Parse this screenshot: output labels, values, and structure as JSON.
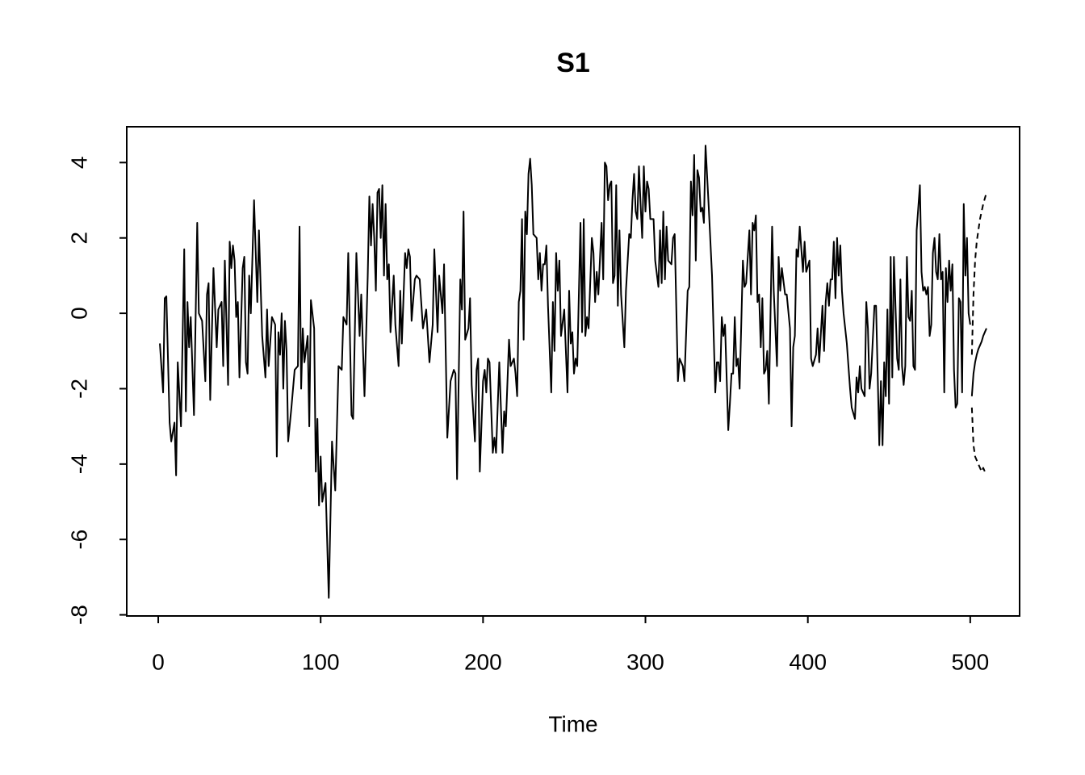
{
  "chart_data": {
    "type": "line",
    "title": "S1",
    "xlabel": "Time",
    "xlim": [
      -19.4,
      530.4
    ],
    "ylim": [
      -8.03,
      4.95
    ],
    "xticks": [
      0,
      100,
      200,
      300,
      400,
      500
    ],
    "yticks": [
      -8,
      -6,
      -4,
      -2,
      0,
      2,
      4
    ],
    "series": [
      {
        "color": "#000000",
        "linestyle": "solid",
        "x": [
          1,
          3,
          4,
          5,
          7,
          8,
          10,
          11,
          12,
          14,
          16,
          17,
          18,
          19,
          20,
          22,
          24,
          25,
          27,
          29,
          30,
          31,
          32,
          34,
          36,
          37,
          39,
          40,
          41,
          43,
          44,
          45,
          46,
          47,
          48,
          49,
          50,
          52,
          53,
          54,
          55,
          56,
          57,
          59,
          61,
          62,
          64,
          66,
          67,
          68,
          70,
          72,
          73,
          74,
          75,
          76,
          77,
          78,
          79,
          80,
          82,
          84,
          86,
          87,
          88,
          89,
          90,
          92,
          93,
          94,
          96,
          97,
          98,
          99,
          100,
          101,
          103,
          105,
          107,
          109,
          111,
          113,
          114,
          116,
          117,
          119,
          120,
          122,
          124,
          125,
          127,
          129,
          130,
          131,
          132,
          133,
          134,
          135,
          136,
          137,
          138,
          139,
          140,
          141,
          142,
          143,
          145,
          146,
          148,
          149,
          150,
          152,
          153,
          154,
          155,
          156,
          158,
          159,
          161,
          163,
          165,
          167,
          169,
          170,
          172,
          173,
          175,
          176,
          178,
          180,
          182,
          183,
          184,
          186,
          187,
          188,
          189,
          191,
          192,
          193,
          195,
          196,
          197,
          198,
          200,
          201,
          202,
          203,
          204,
          206,
          207,
          208,
          210,
          212,
          213,
          214,
          216,
          217,
          219,
          220,
          221,
          222,
          223,
          224,
          225,
          226,
          227,
          228,
          229,
          230,
          231,
          233,
          234,
          235,
          236,
          237,
          238,
          239,
          240,
          242,
          243,
          244,
          245,
          246,
          247,
          248,
          250,
          252,
          253,
          254,
          255,
          256,
          257,
          258,
          260,
          261,
          262,
          263,
          264,
          265,
          267,
          268,
          269,
          270,
          271,
          273,
          274,
          275,
          276,
          277,
          278,
          279,
          280,
          281,
          282,
          283,
          284,
          285,
          287,
          288,
          290,
          291,
          292,
          293,
          294,
          295,
          296,
          297,
          298,
          299,
          300,
          301,
          302,
          303,
          305,
          306,
          308,
          309,
          310,
          311,
          312,
          313,
          314,
          316,
          317,
          318,
          320,
          321,
          323,
          324,
          326,
          327,
          328,
          329,
          330,
          331,
          332,
          333,
          334,
          335,
          336,
          337,
          339,
          341,
          343,
          344,
          345,
          346,
          347,
          348,
          349,
          351,
          352,
          353,
          354,
          355,
          356,
          357,
          358,
          360,
          361,
          362,
          364,
          365,
          366,
          367,
          368,
          369,
          370,
          371,
          372,
          373,
          374,
          375,
          376,
          378,
          379,
          381,
          382,
          383,
          384,
          386,
          387,
          389,
          390,
          391,
          392,
          393,
          394,
          395,
          397,
          398,
          399,
          401,
          402,
          403,
          405,
          406,
          407,
          409,
          410,
          411,
          412,
          413,
          414,
          415,
          416,
          417,
          418,
          419,
          420,
          421,
          422,
          424,
          426,
          427,
          429,
          430,
          431,
          432,
          433,
          435,
          436,
          437,
          438,
          439,
          441,
          442,
          443,
          444,
          445,
          446,
          447,
          448,
          449,
          450,
          451,
          452,
          453,
          455,
          456,
          457,
          458,
          459,
          460,
          461,
          462,
          463,
          464,
          465,
          466,
          467,
          469,
          470,
          471,
          472,
          473,
          474,
          475,
          476,
          477,
          478,
          479,
          480,
          481,
          482,
          483,
          484,
          485,
          486,
          487,
          488,
          489,
          490,
          491,
          492,
          493,
          494,
          495,
          496,
          497,
          498,
          499,
          500
        ],
        "values": [
          -0.8,
          -2.1,
          0.4,
          0.45,
          -2.9,
          -3.4,
          -2.9,
          -4.3,
          -1.3,
          -3.0,
          1.7,
          -2.6,
          0.3,
          -0.9,
          -0.1,
          -2.7,
          2.4,
          0.0,
          -0.2,
          -1.8,
          0.5,
          0.8,
          -2.3,
          1.2,
          -0.9,
          0.1,
          0.3,
          -1.4,
          1.4,
          -1.9,
          1.9,
          1.2,
          1.8,
          1.4,
          -0.1,
          0.3,
          -1.7,
          1.2,
          1.5,
          -1.3,
          -1.6,
          1.0,
          0.0,
          3.0,
          0.3,
          2.2,
          -0.6,
          -1.7,
          0.1,
          -1.4,
          -0.1,
          -0.3,
          -3.8,
          -0.5,
          -1.1,
          0.0,
          -2.0,
          -0.2,
          -1.0,
          -3.4,
          -2.5,
          -1.5,
          -1.4,
          2.3,
          -2.0,
          -0.4,
          -1.3,
          -0.6,
          -3.0,
          0.35,
          -0.4,
          -4.2,
          -2.8,
          -5.1,
          -3.8,
          -5.0,
          -4.5,
          -7.55,
          -3.4,
          -4.7,
          -1.4,
          -1.5,
          -0.1,
          -0.3,
          1.6,
          -2.7,
          -2.8,
          1.6,
          -0.6,
          0.5,
          -2.2,
          1.0,
          3.1,
          1.8,
          2.9,
          2.0,
          0.6,
          3.2,
          3.3,
          2.0,
          3.4,
          1.0,
          2.9,
          0.9,
          1.3,
          -0.5,
          1.0,
          -0.3,
          -1.4,
          0.6,
          -0.8,
          1.6,
          1.2,
          1.7,
          1.5,
          -0.2,
          0.9,
          1.0,
          0.9,
          -0.4,
          0.1,
          -1.3,
          -0.3,
          1.7,
          -0.5,
          1.0,
          0.0,
          1.3,
          -3.3,
          -1.8,
          -1.5,
          -1.6,
          -4.4,
          0.9,
          0.1,
          2.7,
          -0.7,
          -0.4,
          0.4,
          -1.9,
          -3.4,
          -1.5,
          -1.2,
          -4.2,
          -1.8,
          -1.5,
          -2.1,
          -1.2,
          -1.3,
          -3.7,
          -3.3,
          -3.7,
          -1.3,
          -3.7,
          -2.6,
          -3.0,
          -0.7,
          -1.4,
          -1.2,
          -1.6,
          -2.2,
          0.3,
          0.6,
          2.5,
          -0.7,
          2.7,
          2.1,
          3.7,
          4.1,
          3.4,
          2.1,
          2.0,
          0.9,
          1.6,
          0.6,
          1.3,
          1.3,
          1.8,
          0.2,
          -2.1,
          0.3,
          -1.0,
          1.6,
          0.6,
          1.4,
          -0.6,
          0.1,
          -2.1,
          0.6,
          -0.8,
          -0.5,
          -1.6,
          -1.2,
          -1.4,
          2.4,
          -0.5,
          2.5,
          -0.6,
          -0.1,
          -0.4,
          2.0,
          1.6,
          0.3,
          1.1,
          0.5,
          2.4,
          0.9,
          4.0,
          3.9,
          3.0,
          3.4,
          3.5,
          0.8,
          1.0,
          3.4,
          0.2,
          2.2,
          0.5,
          -0.9,
          0.6,
          2.1,
          2.0,
          3.0,
          3.7,
          2.7,
          2.5,
          3.9,
          2.9,
          2.0,
          3.9,
          2.7,
          3.5,
          3.3,
          2.5,
          2.5,
          1.4,
          0.7,
          2.2,
          0.8,
          2.7,
          0.9,
          2.3,
          1.4,
          1.3,
          2.0,
          2.1,
          -1.8,
          -1.2,
          -1.4,
          -1.8,
          0.6,
          0.7,
          3.5,
          2.6,
          4.2,
          1.4,
          3.8,
          3.6,
          2.7,
          2.8,
          2.4,
          4.45,
          2.8,
          1.0,
          -2.1,
          -1.3,
          -1.3,
          -1.8,
          -0.1,
          -0.6,
          -0.3,
          -3.1,
          -2.4,
          -1.6,
          -1.6,
          -0.1,
          -1.4,
          -1.2,
          -2.0,
          1.4,
          0.7,
          0.8,
          2.2,
          0.5,
          2.4,
          2.2,
          2.6,
          0.3,
          0.5,
          -0.9,
          0.4,
          -1.6,
          -1.5,
          -1.0,
          -2.4,
          2.3,
          0.6,
          -1.4,
          1.5,
          0.6,
          1.2,
          0.5,
          0.5,
          -0.4,
          -3.0,
          -0.9,
          -0.6,
          1.7,
          1.5,
          2.3,
          1.1,
          1.9,
          1.1,
          1.4,
          -1.2,
          -1.4,
          -1.1,
          -0.4,
          -1.3,
          0.2,
          -1.0,
          0.3,
          0.8,
          0.2,
          0.9,
          0.9,
          1.9,
          0.4,
          2.0,
          1.0,
          1.8,
          0.6,
          0.0,
          -0.8,
          -2.0,
          -2.5,
          -2.8,
          -1.7,
          -2.1,
          -1.4,
          -2.0,
          -2.2,
          0.3,
          -0.4,
          -2.0,
          -1.6,
          0.2,
          0.2,
          -1.6,
          -3.5,
          -1.8,
          -3.5,
          -1.3,
          -2.2,
          0.1,
          -2.4,
          1.5,
          -1.7,
          1.5,
          -1.2,
          -1.5,
          0.9,
          -1.4,
          -1.9,
          -1.4,
          1.5,
          -0.1,
          -0.2,
          0.6,
          -1.4,
          -1.5,
          2.2,
          3.4,
          1.1,
          0.6,
          0.7,
          0.5,
          0.7,
          -0.6,
          -0.3,
          1.6,
          2.0,
          1.1,
          0.9,
          2.1,
          0.9,
          1.1,
          -2.1,
          1.2,
          0.3,
          1.4,
          0.6,
          1.3,
          -1.5,
          -2.5,
          -2.4,
          0.4,
          0.3,
          -2.1,
          2.9,
          1.0,
          2.0,
          0.0,
          -0.3
        ]
      },
      {
        "color": "#000000",
        "linestyle": "solid",
        "x": [
          501,
          502,
          503,
          504,
          505,
          506,
          507,
          508,
          509,
          510
        ],
        "values": [
          -2.2,
          -1.6,
          -1.3,
          -1.1,
          -0.95,
          -0.85,
          -0.75,
          -0.6,
          -0.5,
          -0.4
        ]
      },
      {
        "color": "#000000",
        "linestyle": "dashed",
        "x": [
          501,
          502,
          503,
          504,
          505,
          506,
          507,
          508,
          509,
          510
        ],
        "values": [
          -1.1,
          0.5,
          1.4,
          1.9,
          2.2,
          2.5,
          2.7,
          2.9,
          3.05,
          3.2
        ]
      },
      {
        "color": "#000000",
        "linestyle": "dashed",
        "x": [
          501,
          502,
          503,
          504,
          505,
          506,
          507,
          508,
          509,
          510
        ],
        "values": [
          -2.5,
          -3.5,
          -3.8,
          -3.9,
          -4.0,
          -4.1,
          -4.2,
          -4.1,
          -4.2,
          -4.2
        ]
      }
    ]
  }
}
